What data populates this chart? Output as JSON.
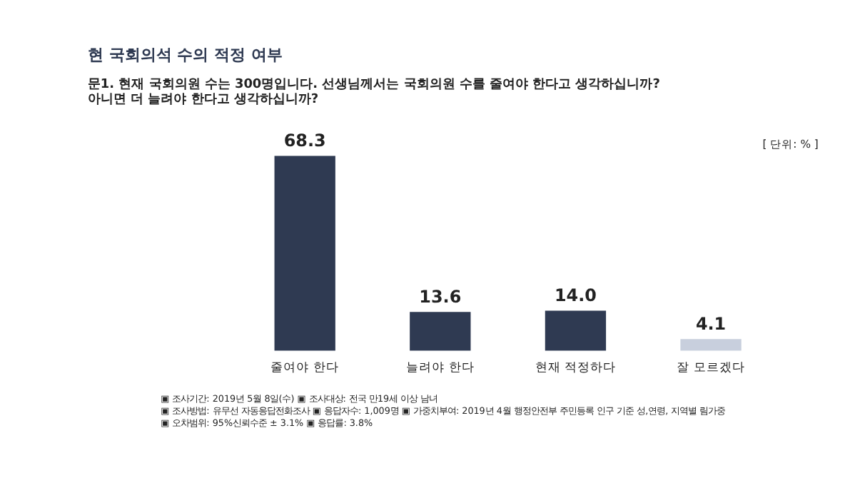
{
  "chart_data": {
    "type": "bar",
    "title": "현 국회의석 수의 적정 여부",
    "subtitle": [
      "문1. 현재 국회의원 수는 300명입니다. 선생님께서는 국회의원 수를 줄여야 한다고 생각하십니까?",
      "      아니면 더 늘려야 한다고 생각하십니까?"
    ],
    "categories": [
      "줄여야 한다",
      "늘려야 한다",
      "현재 적정하다",
      "잘 모르겠다"
    ],
    "values": [
      68.3,
      13.6,
      14.0,
      4.1
    ],
    "colors": [
      "#2f3a52",
      "#2f3a52",
      "#2f3a52",
      "#c8cfdd"
    ],
    "value_labels": [
      "68.3",
      "13.6",
      "14.0",
      "4.1"
    ],
    "grid": false,
    "annotations": [
      "[ 단위: % ]",
      "▣ 조사기간: 2019년 5월 8일(수) ▣ 조사대상: 전국 만19세 이상 남녀",
      "▣ 조사방법: 유무선 자동응답전화조사 ▣ 응답자수: 1,009명 ▣ 가중치부여: 2019년 4월 행정안전부 주민등록 인구 기준 성,연령, 지역별 림가중",
      "▣ 오차범위: 95%신뢰수준 ± 3.1% ▣ 응답률: 3.8%"
    ]
  }
}
